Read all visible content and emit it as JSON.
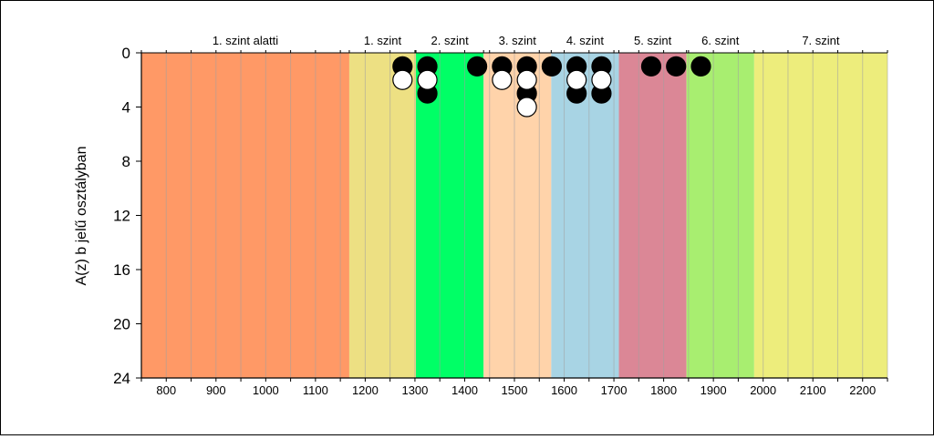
{
  "chart_data": {
    "type": "scatter",
    "xlabel": "",
    "ylabel": "A(z) b jelű osztályban",
    "xlim": [
      750,
      2250
    ],
    "ylim": [
      0,
      24
    ],
    "y_inverted": true,
    "xticks": [
      800,
      900,
      1000,
      1100,
      1200,
      1300,
      1400,
      1500,
      1600,
      1700,
      1800,
      1900,
      2000,
      2100,
      2200
    ],
    "yticks": [
      0,
      4,
      8,
      12,
      16,
      20,
      24
    ],
    "grid": "vertical",
    "bands": [
      {
        "label": "1. szint alatti",
        "from": 750,
        "to": 1168,
        "color": "#ff9966"
      },
      {
        "label": "1. szint",
        "from": 1168,
        "to": 1302,
        "color": "#ede083"
      },
      {
        "label": "2. szint",
        "from": 1302,
        "to": 1438,
        "color": "#00ff66"
      },
      {
        "label": "3. szint",
        "from": 1438,
        "to": 1574,
        "color": "#ffd3aa"
      },
      {
        "label": "4. szint",
        "from": 1574,
        "to": 1710,
        "color": "#a8d4e4"
      },
      {
        "label": "5. szint",
        "from": 1710,
        "to": 1846,
        "color": "#db8796"
      },
      {
        "label": "6. szint",
        "from": 1846,
        "to": 1982,
        "color": "#a8ee70"
      },
      {
        "label": "7. szint",
        "from": 1982,
        "to": 2250,
        "color": "#eded7c"
      }
    ],
    "series": [
      {
        "marker": "filled",
        "color": "#000000",
        "points": [
          [
            1275,
            1
          ],
          [
            1325,
            1
          ],
          [
            1325,
            3
          ],
          [
            1425,
            1
          ],
          [
            1475,
            1
          ],
          [
            1525,
            1
          ],
          [
            1525,
            3
          ],
          [
            1575,
            1
          ],
          [
            1625,
            1
          ],
          [
            1625,
            3
          ],
          [
            1675,
            1
          ],
          [
            1675,
            3
          ],
          [
            1775,
            1
          ],
          [
            1825,
            1
          ],
          [
            1875,
            1
          ]
        ]
      },
      {
        "marker": "open",
        "color": "#ffffff",
        "points": [
          [
            1275,
            2
          ],
          [
            1325,
            2
          ],
          [
            1475,
            2
          ],
          [
            1525,
            2
          ],
          [
            1525,
            4
          ],
          [
            1625,
            2
          ],
          [
            1675,
            2
          ]
        ]
      }
    ]
  }
}
